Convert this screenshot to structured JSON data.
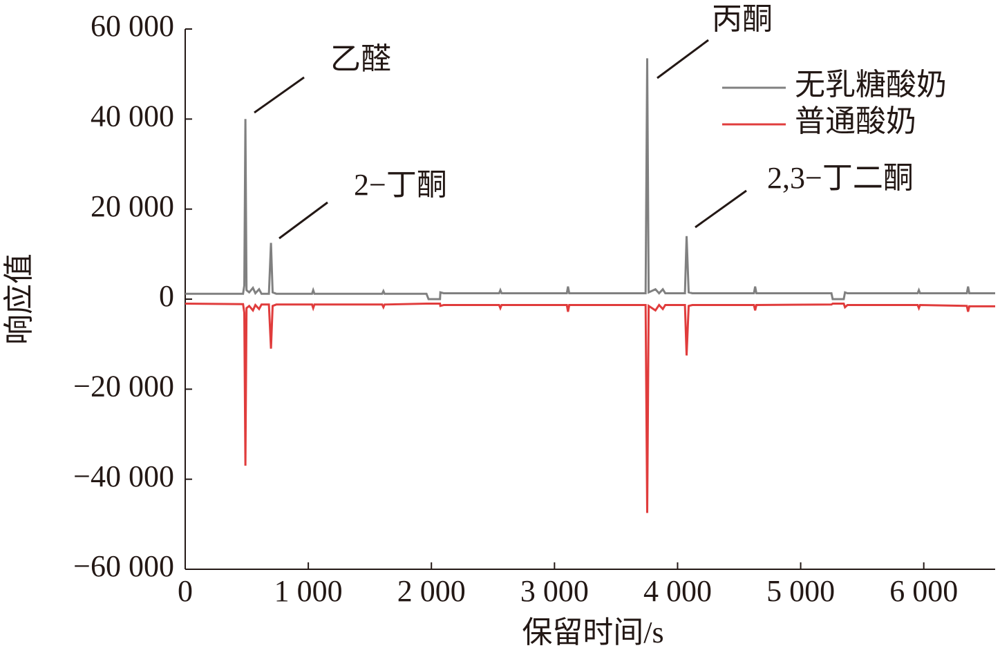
{
  "chart_data": {
    "type": "line",
    "x_label": "保留时间/s",
    "y_label": "响应值",
    "xlim": [
      0,
      6580
    ],
    "ylim": [
      -60000,
      60000
    ],
    "xticks": [
      0,
      {
        "value": 1000,
        "label": "1 000"
      },
      {
        "value": 2000,
        "label": "2 000"
      },
      {
        "value": 3000,
        "label": "3 000"
      },
      {
        "value": 4000,
        "label": "4 000"
      },
      {
        "value": 5000,
        "label": "5 000"
      },
      {
        "value": 6000,
        "label": "6 000"
      }
    ],
    "yticks": [
      {
        "value": -60000,
        "label": "−60 000"
      },
      {
        "value": -40000,
        "label": "−40 000"
      },
      {
        "value": -20000,
        "label": "−20 000"
      },
      0,
      {
        "value": 20000,
        "label": "20 000"
      },
      {
        "value": 40000,
        "label": "40 000"
      },
      {
        "value": 60000,
        "label": "60 000"
      }
    ],
    "annotations": [
      {
        "text": "乙醛"
      },
      {
        "text": "2−丁酮"
      },
      {
        "text": "丙酮"
      },
      {
        "text": "2,3−丁二酮"
      }
    ],
    "x": [
      0,
      470,
      480,
      489,
      498,
      520,
      550,
      570,
      600,
      620,
      680,
      697,
      710,
      740,
      1030,
      1040,
      1050,
      1600,
      1610,
      1620,
      1960,
      1977,
      2070,
      2073,
      2100,
      2550,
      2560,
      2570,
      3100,
      3110,
      3120,
      3740,
      3753,
      3765,
      3820,
      3850,
      3880,
      3900,
      4060,
      4073,
      4090,
      4120,
      4620,
      4630,
      4640,
      5250,
      5260,
      5350,
      5360,
      5380,
      5950,
      5960,
      5970,
      6350,
      6360,
      6370,
      6580
    ],
    "series": [
      {
        "name": "无乳糖酸奶",
        "color": "#808080",
        "values": [
          1200,
          1200,
          3000,
          40000,
          2000,
          1500,
          2500,
          1300,
          2200,
          1200,
          1200,
          12500,
          1500,
          1200,
          1200,
          2000,
          1200,
          1200,
          1800,
          1200,
          1200,
          0,
          0,
          1500,
          1300,
          1300,
          2000,
          1300,
          1300,
          2800,
          1300,
          1300,
          53500,
          1500,
          2200,
          1300,
          2200,
          1300,
          1300,
          14000,
          1500,
          1300,
          1300,
          2800,
          1300,
          1300,
          0,
          0,
          1500,
          1300,
          1300,
          2000,
          1300,
          1300,
          2800,
          1300,
          1300
        ]
      },
      {
        "name": "普通酸奶",
        "color": "#e03c3c",
        "values": [
          -1000,
          -1100,
          -3000,
          -37000,
          -2000,
          -1500,
          -2500,
          -1300,
          -2200,
          -1200,
          -1200,
          -11000,
          -1500,
          -1200,
          -1200,
          -2000,
          -1200,
          -1200,
          -1800,
          -1200,
          -1000,
          -1000,
          -1000,
          -1500,
          -1300,
          -1300,
          -2000,
          -1300,
          -1300,
          -2800,
          -1300,
          -1300,
          -47500,
          -1500,
          -2500,
          -1300,
          -2200,
          -1300,
          -1300,
          -12500,
          -1500,
          -1300,
          -1300,
          -2500,
          -1300,
          -1200,
          -1000,
          -1000,
          -1800,
          -1300,
          -1300,
          -2000,
          -1300,
          -1500,
          -2800,
          -1600,
          -1600
        ]
      }
    ]
  }
}
